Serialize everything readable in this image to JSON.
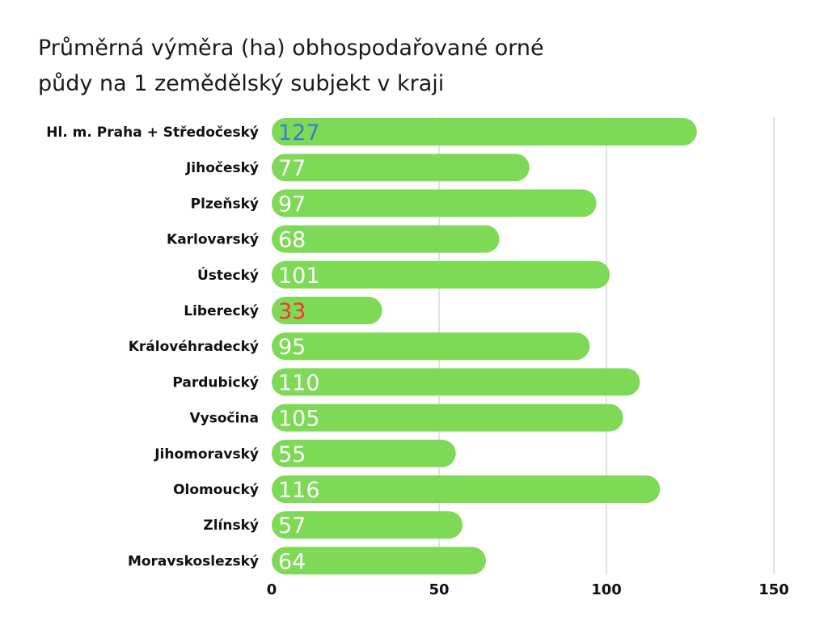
{
  "title": {
    "line1": "Průměrná výměra (ha) obhospodařované orné",
    "line2": "půdy na 1 zemědělský subjekt v kraji"
  },
  "colors": {
    "bar": "#7ed957",
    "grid": "#d9d9d9",
    "value_default": "#ffffff",
    "value_highest": "#3a7bd5",
    "value_lowest": "#ff3131"
  },
  "chart_data": {
    "type": "bar",
    "orientation": "horizontal",
    "title": "Průměrná výměra (ha) obhospodařované orné půdy na 1 zemědělský subjekt v kraji",
    "categories": [
      "Hl. m. Praha + Středočeský",
      "Jihočeský",
      "Plzeňský",
      "Karlovarský",
      "Ústecký",
      "Liberecký",
      "Královéhradecký",
      "Pardubický",
      "Vysočina",
      "Jihomoravský",
      "Olomoucký",
      "Zlínský",
      "Moravskoslezský"
    ],
    "values": [
      127,
      77,
      97,
      68,
      101,
      33,
      95,
      110,
      105,
      55,
      116,
      57,
      64
    ],
    "value_colors": [
      "#3a7bd5",
      "#ffffff",
      "#ffffff",
      "#ffffff",
      "#ffffff",
      "#ff3131",
      "#ffffff",
      "#ffffff",
      "#ffffff",
      "#ffffff",
      "#ffffff",
      "#ffffff",
      "#ffffff"
    ],
    "xlim": [
      0,
      150
    ],
    "xticks": [
      0,
      50,
      100,
      150
    ],
    "xlabel": "",
    "ylabel": "",
    "grid": true,
    "data_labels": true
  }
}
